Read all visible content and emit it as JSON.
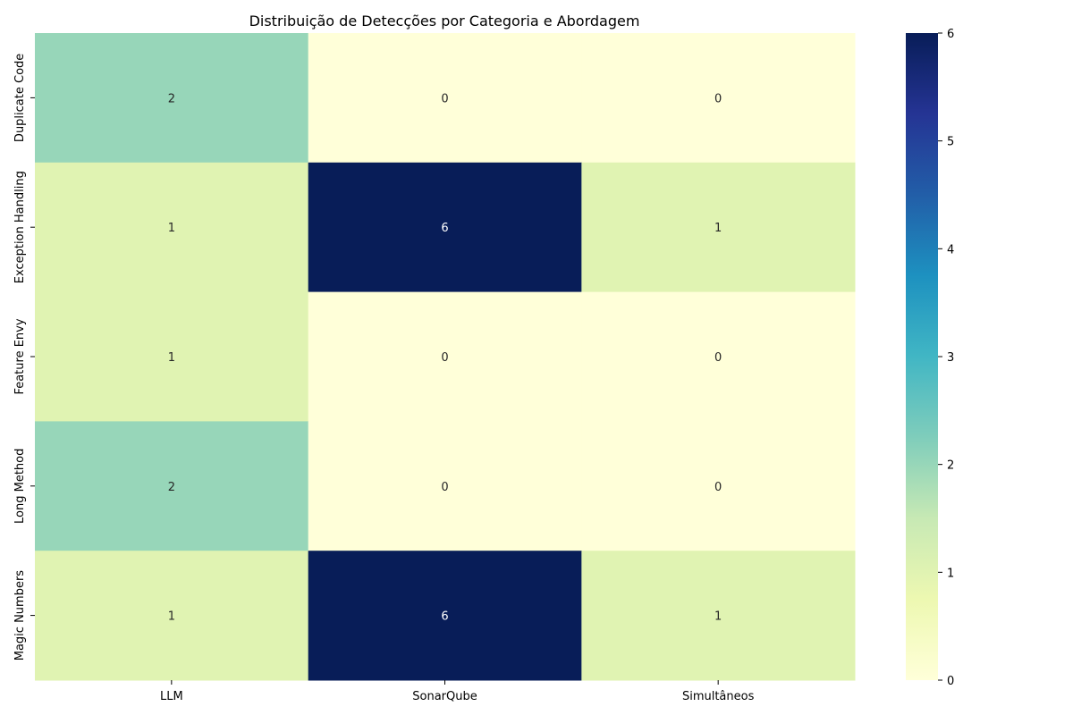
{
  "chart_data": {
    "type": "heatmap",
    "title": "Distribuição de Detecções por Categoria e Abordagem",
    "xlabel": "",
    "ylabel": "",
    "x_categories": [
      "LLM",
      "SonarQube",
      "Simultâneos"
    ],
    "y_categories": [
      "Duplicate Code",
      "Exception Handling",
      "Feature Envy",
      "Long Method",
      "Magic Numbers"
    ],
    "values": [
      [
        2,
        0,
        0
      ],
      [
        1,
        6,
        1
      ],
      [
        1,
        0,
        0
      ],
      [
        2,
        0,
        0
      ],
      [
        1,
        6,
        1
      ]
    ],
    "colormap": "YlGnBu",
    "colorbar": {
      "range": [
        0,
        6
      ],
      "ticks": [
        0,
        1,
        2,
        3,
        4,
        5,
        6
      ]
    },
    "annotations": true
  }
}
